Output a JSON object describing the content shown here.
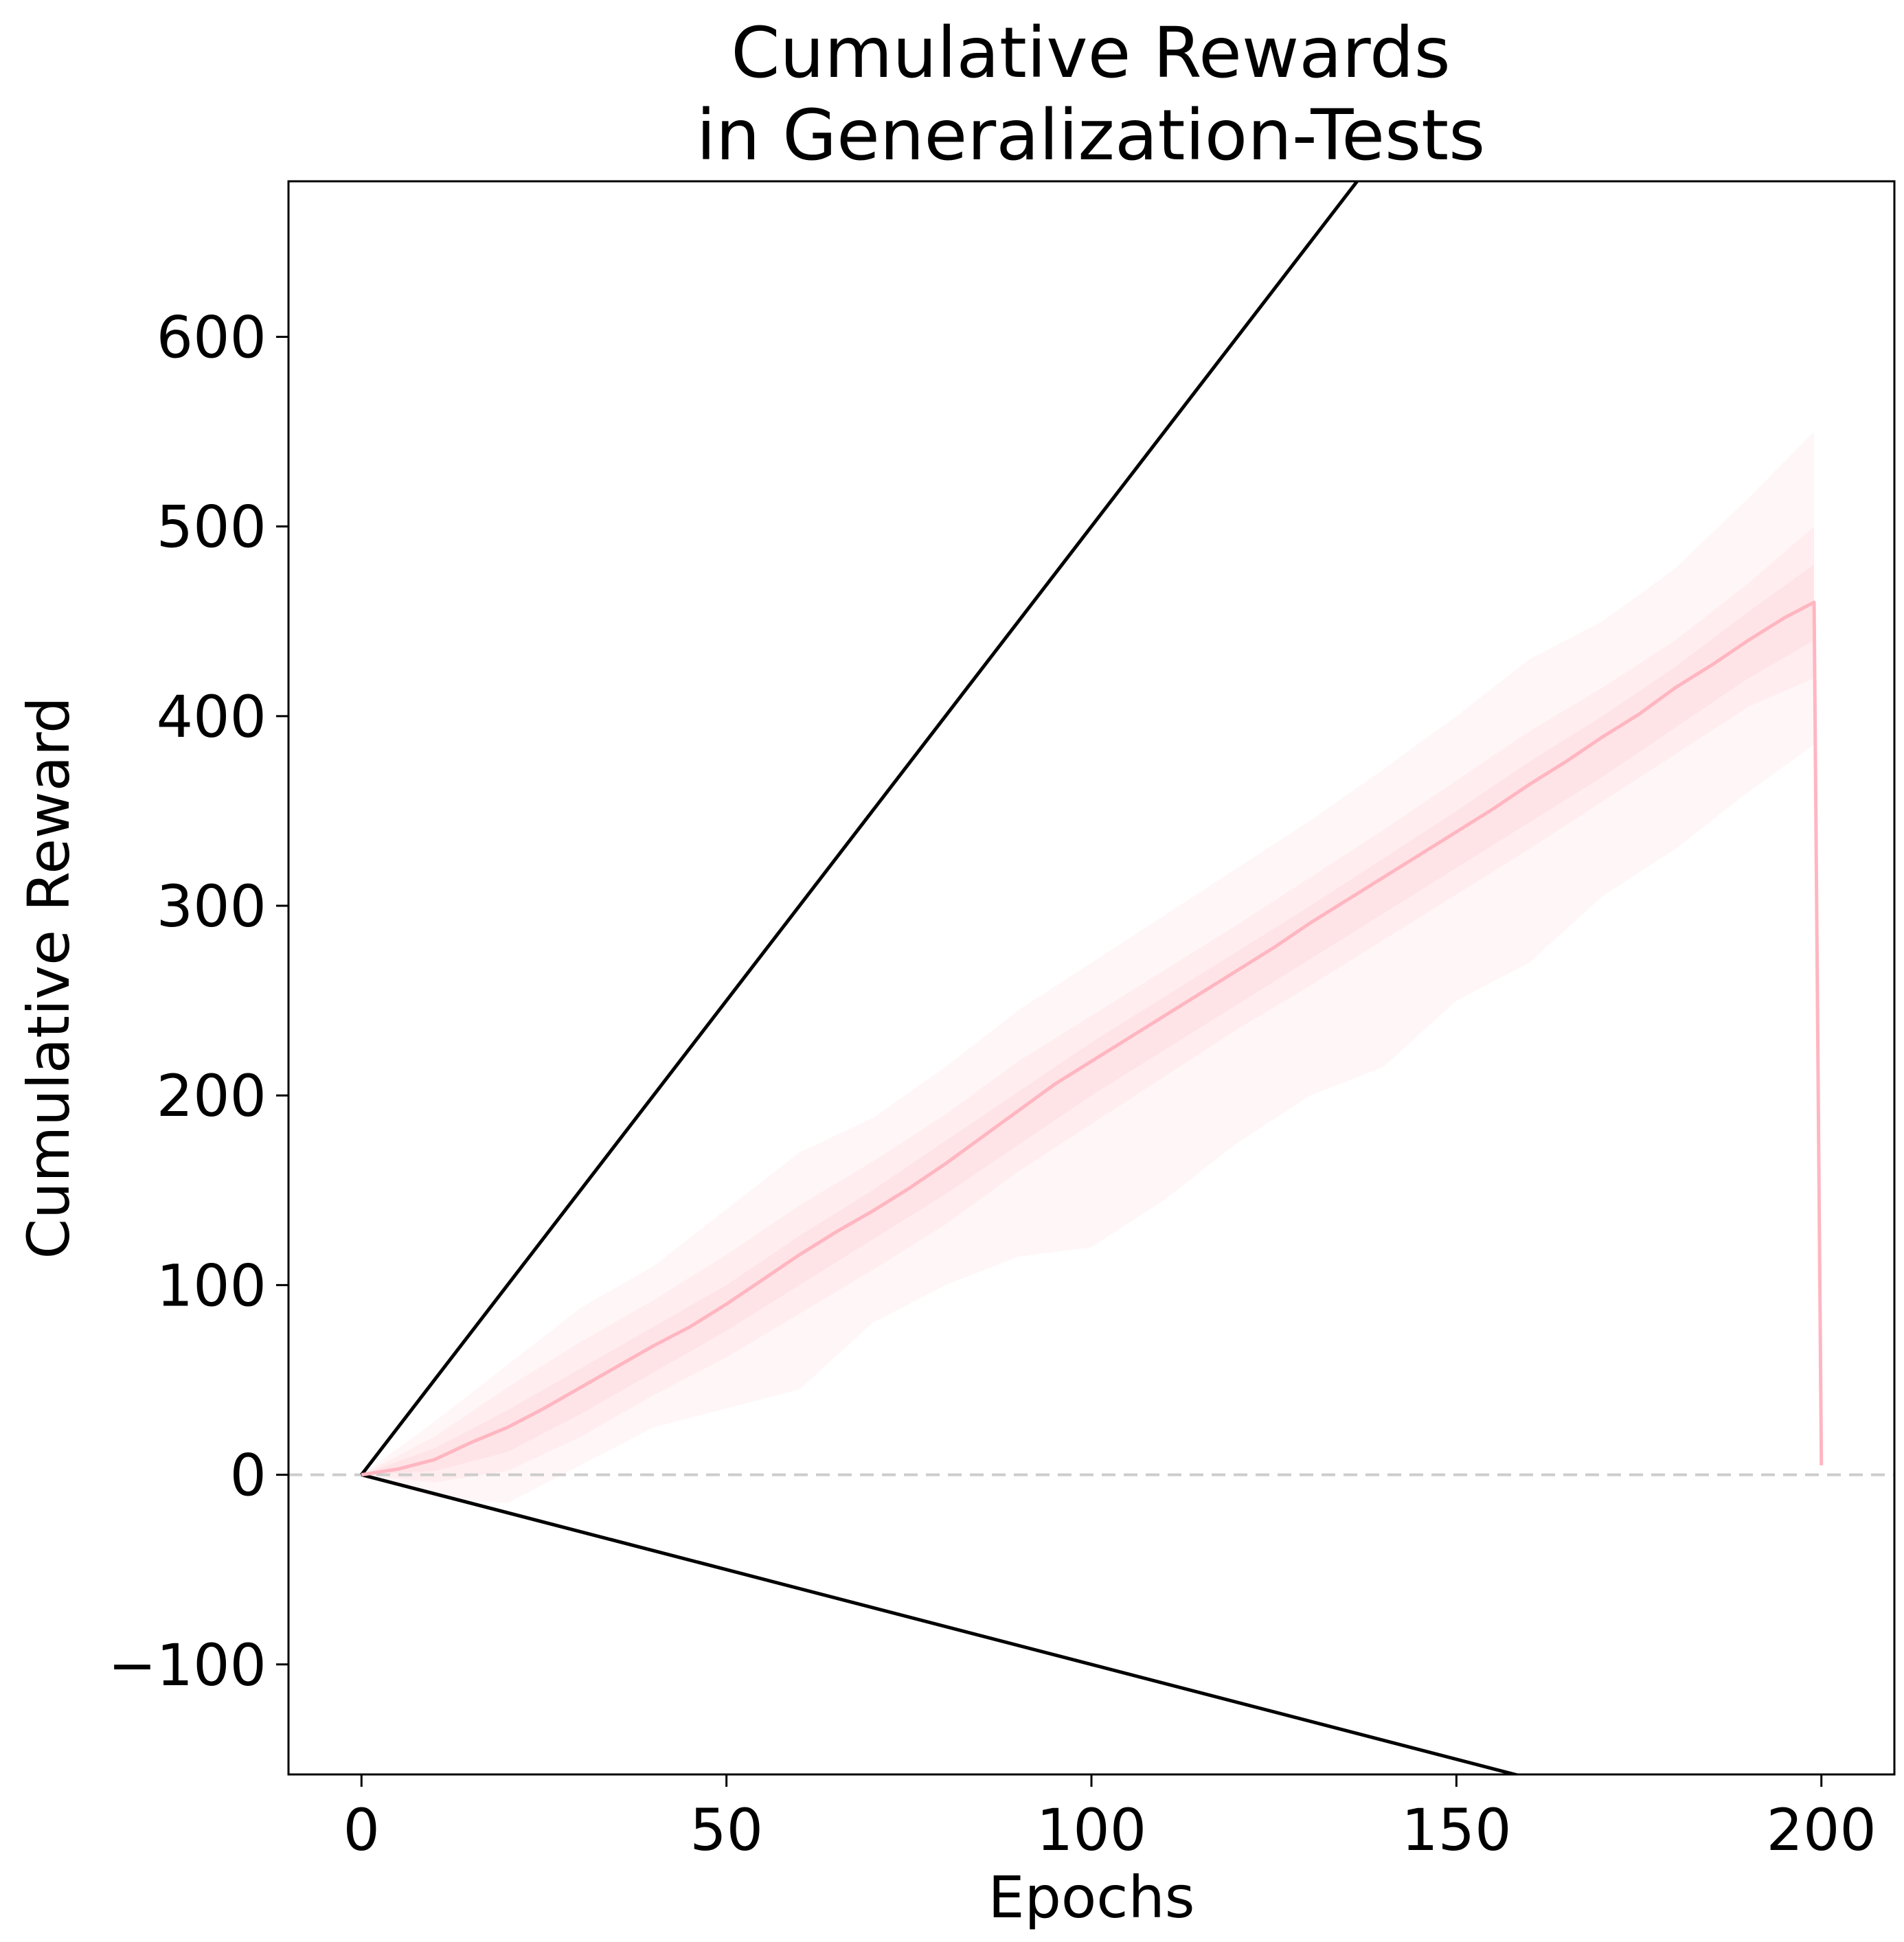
{
  "chart_data": {
    "type": "line",
    "title_lines": [
      "Cumulative Rewards",
      "in Generalization-Tests"
    ],
    "xlabel": "Epochs",
    "ylabel": "Cumulative Reward",
    "xlim": [
      -10,
      210
    ],
    "ylim": [
      -158,
      682
    ],
    "x_ticks": [
      0,
      50,
      100,
      150,
      200
    ],
    "x_tick_labels": [
      "0",
      "50",
      "100",
      "150",
      "200"
    ],
    "y_ticks": [
      -100,
      0,
      100,
      200,
      300,
      400,
      500,
      600
    ],
    "y_tick_labels": [
      "−100",
      "0",
      "100",
      "200",
      "300",
      "400",
      "500",
      "600"
    ],
    "grid": false,
    "zero_line": {
      "y": 0,
      "style": "dashed",
      "color": "#cccccc"
    },
    "bounds": [
      {
        "points": [
          [
            0,
            0
          ],
          [
            200,
            1000
          ]
        ],
        "color": "#000000"
      },
      {
        "points": [
          [
            0,
            0
          ],
          [
            200,
            -200
          ]
        ],
        "color": "#000000"
      }
    ],
    "mean_series": {
      "color": "#ffb6c1",
      "points": [
        [
          0,
          0
        ],
        [
          5,
          3
        ],
        [
          10,
          8
        ],
        [
          15,
          17
        ],
        [
          20,
          25
        ],
        [
          25,
          35
        ],
        [
          30,
          46
        ],
        [
          35,
          57
        ],
        [
          40,
          68
        ],
        [
          45,
          78
        ],
        [
          50,
          90
        ],
        [
          55,
          103
        ],
        [
          60,
          116
        ],
        [
          65,
          128
        ],
        [
          70,
          139
        ],
        [
          75,
          151
        ],
        [
          80,
          164
        ],
        [
          85,
          178
        ],
        [
          90,
          192
        ],
        [
          95,
          206
        ],
        [
          100,
          218
        ],
        [
          105,
          230
        ],
        [
          110,
          242
        ],
        [
          115,
          254
        ],
        [
          120,
          266
        ],
        [
          125,
          278
        ],
        [
          130,
          291
        ],
        [
          135,
          303
        ],
        [
          140,
          315
        ],
        [
          145,
          327
        ],
        [
          150,
          339
        ],
        [
          155,
          351
        ],
        [
          160,
          364
        ],
        [
          165,
          376
        ],
        [
          170,
          389
        ],
        [
          175,
          401
        ],
        [
          180,
          415
        ],
        [
          185,
          427
        ],
        [
          190,
          440
        ],
        [
          195,
          452
        ],
        [
          199,
          460
        ],
        [
          200,
          5
        ]
      ]
    },
    "bands": [
      {
        "color": "#ffb6c1",
        "opacity": 0.12,
        "x": [
          0,
          10,
          20,
          30,
          40,
          50,
          60,
          70,
          80,
          90,
          100,
          110,
          120,
          130,
          140,
          150,
          160,
          170,
          180,
          190,
          199
        ],
        "upper": [
          0,
          28,
          58,
          88,
          110,
          140,
          170,
          188,
          215,
          245,
          270,
          295,
          320,
          345,
          372,
          400,
          430,
          450,
          478,
          515,
          550
        ],
        "lower": [
          0,
          -12,
          -15,
          5,
          25,
          35,
          45,
          80,
          100,
          115,
          120,
          145,
          175,
          200,
          215,
          250,
          270,
          305,
          330,
          360,
          385
        ]
      },
      {
        "color": "#ffb6c1",
        "opacity": 0.14,
        "x": [
          0,
          10,
          20,
          30,
          40,
          50,
          60,
          70,
          80,
          90,
          100,
          110,
          120,
          130,
          140,
          150,
          160,
          170,
          180,
          190,
          199
        ],
        "upper": [
          0,
          20,
          46,
          70,
          92,
          116,
          142,
          165,
          190,
          218,
          242,
          266,
          290,
          315,
          340,
          366,
          392,
          415,
          440,
          470,
          500
        ],
        "lower": [
          0,
          -4,
          2,
          20,
          42,
          62,
          85,
          108,
          132,
          160,
          185,
          210,
          235,
          258,
          282,
          306,
          330,
          355,
          380,
          405,
          420
        ]
      },
      {
        "color": "#ffb6c1",
        "opacity": 0.16,
        "x": [
          0,
          10,
          20,
          30,
          40,
          50,
          60,
          70,
          80,
          90,
          100,
          110,
          120,
          130,
          140,
          150,
          160,
          170,
          180,
          190,
          199
        ],
        "upper": [
          0,
          14,
          34,
          56,
          78,
          100,
          126,
          150,
          176,
          202,
          228,
          252,
          276,
          300,
          325,
          350,
          376,
          400,
          426,
          455,
          480
        ],
        "lower": [
          0,
          2,
          12,
          32,
          54,
          76,
          100,
          124,
          148,
          174,
          200,
          224,
          248,
          272,
          296,
          320,
          344,
          368,
          394,
          420,
          440
        ]
      }
    ]
  }
}
